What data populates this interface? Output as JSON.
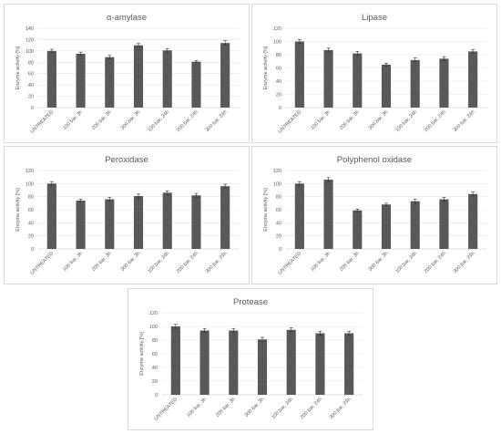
{
  "chart_data": [
    {
      "type": "bar",
      "title": "α-amylase",
      "ylabel": "Enzyme activity [%]",
      "xlabel": "",
      "categories": [
        "UNTREATED",
        "100 bar, 3h",
        "200 bar, 3h",
        "300 bar, 3h",
        "100 bar, 24h",
        "200 bar, 24h",
        "300 bar, 24h"
      ],
      "values": [
        100,
        95,
        89,
        110,
        101,
        81,
        114
      ],
      "errors": [
        3,
        3,
        3,
        3,
        3,
        2,
        4
      ],
      "ylim": [
        0,
        140
      ],
      "yticks": [
        0,
        20,
        40,
        60,
        80,
        100,
        120,
        140
      ],
      "grid": "horizontal",
      "bar_color": "#595959"
    },
    {
      "type": "bar",
      "title": "Lipase",
      "ylabel": "Enzyme activity [%]",
      "xlabel": "",
      "categories": [
        "UNTREATED",
        "100 bar, 3h",
        "200 bar, 3h",
        "300 bar, 3h",
        "100 bar, 24h",
        "200 bar, 24h",
        "300 bar, 24h"
      ],
      "values": [
        100,
        87,
        82,
        65,
        72,
        74,
        85
      ],
      "errors": [
        3,
        3,
        3,
        2,
        3,
        3,
        3
      ],
      "ylim": [
        0,
        120
      ],
      "yticks": [
        0,
        20,
        40,
        60,
        80,
        100,
        120
      ],
      "grid": "horizontal",
      "bar_color": "#595959"
    },
    {
      "type": "bar",
      "title": "Peroxidase",
      "ylabel": "Enzyme activity [%]",
      "xlabel": "",
      "categories": [
        "UNTREATED",
        "100 bar, 3h",
        "200 bar, 3h",
        "300 bar, 3h",
        "100 bar, 24h",
        "200 bar, 24h",
        "300 bar, 24h"
      ],
      "values": [
        100,
        74,
        76,
        81,
        86,
        82,
        96
      ],
      "errors": [
        3,
        2,
        3,
        3,
        3,
        3,
        3
      ],
      "ylim": [
        0,
        120
      ],
      "yticks": [
        0,
        20,
        40,
        60,
        80,
        100,
        120
      ],
      "grid": "horizontal",
      "bar_color": "#595959"
    },
    {
      "type": "bar",
      "title": "Polyphenol oxidase",
      "ylabel": "Enzyme activity [%]",
      "xlabel": "",
      "categories": [
        "UNTREATED",
        "100 bar, 3h",
        "200 bar, 3h",
        "300 bar, 3h",
        "100 bar, 24h",
        "200 bar, 24h",
        "300 bar, 24h"
      ],
      "values": [
        100,
        106,
        59,
        68,
        73,
        76,
        84
      ],
      "errors": [
        3,
        3,
        2,
        2,
        3,
        3,
        3
      ],
      "ylim": [
        0,
        120
      ],
      "yticks": [
        0,
        20,
        40,
        60,
        80,
        100,
        120
      ],
      "grid": "horizontal",
      "bar_color": "#595959"
    },
    {
      "type": "bar",
      "title": "Protease",
      "ylabel": "Enzyme activity [%]",
      "xlabel": "",
      "categories": [
        "UNTREATED",
        "100 bar, 3h",
        "200 bar, 3h",
        "300 bar, 3h",
        "100 bar, 24h",
        "200 bar, 24h",
        "300 bar, 24h"
      ],
      "values": [
        100,
        94,
        94,
        81,
        95,
        90,
        90
      ],
      "errors": [
        3,
        3,
        3,
        3,
        3,
        3,
        3
      ],
      "ylim": [
        0,
        120
      ],
      "yticks": [
        0,
        20,
        40,
        60,
        80,
        100,
        120
      ],
      "grid": "horizontal",
      "bar_color": "#595959"
    }
  ]
}
